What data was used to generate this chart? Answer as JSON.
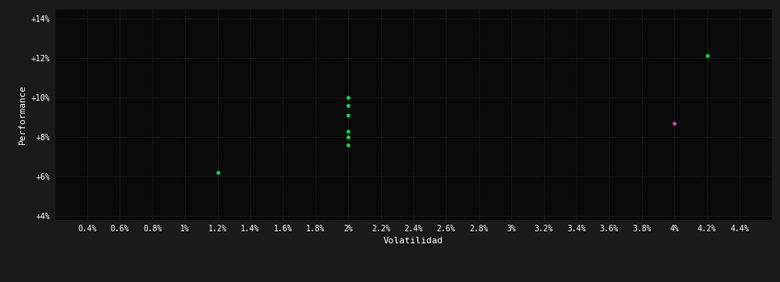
{
  "background_color": "#1a1a1a",
  "plot_bg_color": "#0a0a0a",
  "grid_color": "#2a2a2a",
  "text_color": "#ffffff",
  "xlabel": "Volatilidad",
  "ylabel": "Performance",
  "xlim": [
    0.002,
    0.046
  ],
  "ylim": [
    0.038,
    0.145
  ],
  "xticks": [
    0.004,
    0.006,
    0.008,
    0.01,
    0.012,
    0.014,
    0.016,
    0.018,
    0.02,
    0.022,
    0.024,
    0.026,
    0.028,
    0.03,
    0.032,
    0.034,
    0.036,
    0.038,
    0.04,
    0.042,
    0.044
  ],
  "yticks": [
    0.04,
    0.06,
    0.08,
    0.1,
    0.12,
    0.14
  ],
  "xtick_labels": [
    "0.4%",
    "0.6%",
    "0.8%",
    "1%",
    "1.2%",
    "1.4%",
    "1.6%",
    "1.8%",
    "2%",
    "2.2%",
    "2.4%",
    "2.6%",
    "2.8%",
    "3%",
    "3.2%",
    "3.4%",
    "3.6%",
    "3.8%",
    "4%",
    "4.2%",
    "4.4%"
  ],
  "ytick_labels": [
    "+4%",
    "+6%",
    "+8%",
    "+10%",
    "+12%",
    "+14%"
  ],
  "green_points": [
    [
      0.02,
      0.1
    ],
    [
      0.02,
      0.096
    ],
    [
      0.02,
      0.091
    ],
    [
      0.02,
      0.083
    ],
    [
      0.02,
      0.08
    ],
    [
      0.02,
      0.076
    ],
    [
      0.012,
      0.062
    ],
    [
      0.042,
      0.121
    ]
  ],
  "magenta_points": [
    [
      0.04,
      0.087
    ]
  ],
  "green_color": "#00dd44",
  "magenta_color": "#cc44bb",
  "point_size": 12,
  "figsize": [
    9.66,
    3.5
  ],
  "dpi": 100
}
